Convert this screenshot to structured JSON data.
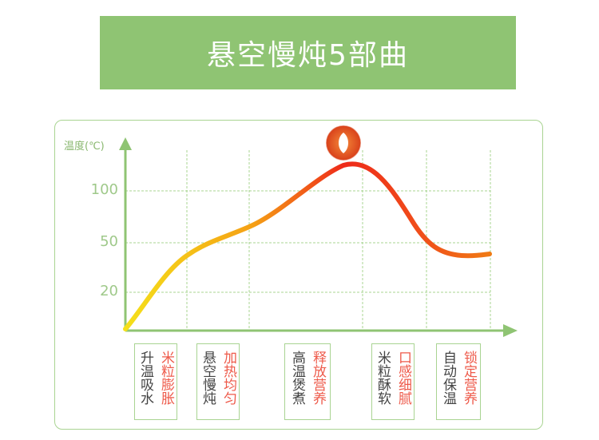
{
  "title": "悬空慢炖5部曲",
  "chart_data": {
    "type": "line",
    "ylabel": "温度(℃)",
    "yticks": [
      "100",
      "50",
      "20"
    ],
    "colors": {
      "curve_start": "#f5de1a",
      "curve_peak": "#ee2a1a",
      "curve_end": "#f07a14",
      "grid": "#a9d492"
    },
    "stages": [
      {
        "col1": "升温吸水",
        "col2": "米粒膨胀"
      },
      {
        "col1": "悬空慢炖",
        "col2": "加热均匀"
      },
      {
        "col1": "高温煲煮",
        "col2": "释放营养"
      },
      {
        "col1": "米粒酥软",
        "col2": "口感细腻"
      },
      {
        "col1": "自动保温",
        "col2": "锁定营养"
      }
    ]
  }
}
